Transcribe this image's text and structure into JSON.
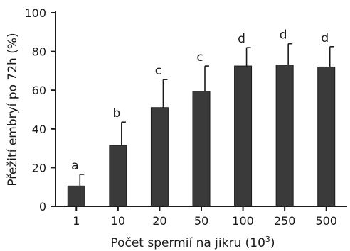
{
  "chart_data": {
    "type": "bar",
    "categories": [
      "1",
      "10",
      "20",
      "50",
      "100",
      "250",
      "500"
    ],
    "values": [
      10.5,
      31.5,
      51.0,
      59.5,
      72.5,
      73.0,
      72.0
    ],
    "error_upper": [
      16.5,
      43.5,
      65.5,
      72.5,
      82.0,
      84.0,
      82.5
    ],
    "significance_letters": [
      "a",
      "b",
      "c",
      "c",
      "d",
      "d",
      "d"
    ],
    "xlabel": "Počet spermií na jikru (10",
    "xlabel_superscript": "3",
    "xlabel_suffix": ")",
    "ylabel": "Přežití embryí po 72h (%)",
    "ylim": [
      0,
      100
    ],
    "yticks": [
      0,
      20,
      40,
      60,
      80,
      100
    ],
    "grid": false,
    "colors": {
      "bar": "#3a3a3a",
      "bar_edge": "#1a1a1a",
      "axis": "#1a1a1a"
    }
  }
}
